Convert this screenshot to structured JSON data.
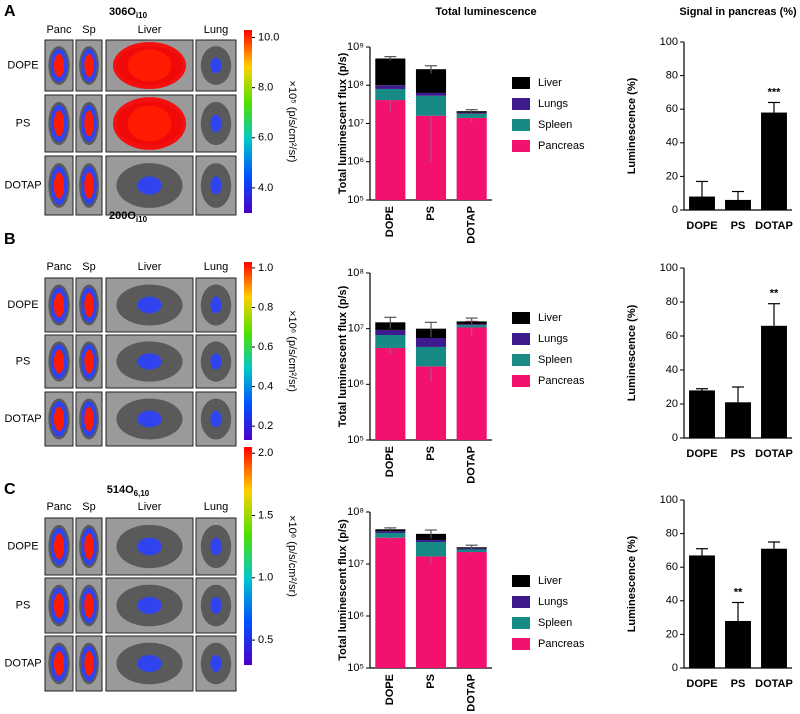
{
  "panels": [
    {
      "letter": "A",
      "title": "306O",
      "title_sub": "i10",
      "columns": [
        "Panc",
        "Sp",
        "Liver",
        "Lung"
      ],
      "rows": [
        "DOPE",
        "PS",
        "DOTAP"
      ],
      "colorbar": {
        "lim": [
          3,
          10.3
        ],
        "ticks": [
          {
            "value": 4,
            "label": "4.0"
          },
          {
            "value": 6,
            "label": "6.0"
          },
          {
            "value": 8,
            "label": "8.0"
          },
          {
            "value": 10,
            "label": "10.0"
          }
        ],
        "label": "×10⁵ (p/s/cm²/sr)"
      }
    },
    {
      "letter": "B",
      "title": "200O",
      "title_sub": "i10",
      "columns": [
        "Panc",
        "Sp",
        "Liver",
        "Lung"
      ],
      "rows": [
        "DOPE",
        "PS",
        "DOTAP"
      ],
      "colorbar": {
        "lim": [
          0.13,
          1.03
        ],
        "ticks": [
          0.2,
          0.4,
          0.6,
          0.8,
          {
            "value": 1,
            "label": "1.0"
          }
        ],
        "label": "×10⁶ (p/s/cm²/sr)"
      }
    },
    {
      "letter": "C",
      "title": "514O",
      "title_sub": "6,10",
      "columns": [
        "Panc",
        "Sp",
        "Liver",
        "Lung"
      ],
      "rows": [
        "DOPE",
        "PS",
        "DOTAP"
      ],
      "colorbar": {
        "lim": [
          0.3,
          2.05
        ],
        "ticks": [
          0.5,
          {
            "value": 1,
            "label": "1.0"
          },
          1.5,
          {
            "value": 2,
            "label": "2.0"
          }
        ],
        "label": "×10⁶ (p/s/cm²/sr)"
      }
    }
  ],
  "chart_data": [
    {
      "type": "stacked_bar",
      "title": "Total luminescence",
      "ylabel": "Total luminescent flux (p/s)",
      "categories": [
        "DOPE",
        "PS",
        "DOTAP"
      ],
      "log_scale": true,
      "ylim": [
        100000,
        1000000000
      ],
      "yticks": [
        {
          "value": 100000,
          "label": "10⁵"
        },
        {
          "value": 1000000,
          "label": "10⁶"
        },
        {
          "value": 10000000,
          "label": "10⁷"
        },
        {
          "value": 100000000,
          "label": "10⁸"
        },
        {
          "value": 1000000000,
          "label": "10⁹"
        }
      ],
      "series": [
        {
          "name": "Pancreas",
          "color": "#f2116c",
          "values": [
            41000000,
            16000000,
            14000000
          ],
          "errors": [
            20000000,
            15000000,
            3000000
          ]
        },
        {
          "name": "Spleen",
          "color": "#168a84",
          "values": [
            39000000,
            37000000,
            4000000
          ]
        },
        {
          "name": "Lungs",
          "color": "#3d1a8e",
          "values": [
            20000000,
            10000000,
            1000000
          ]
        },
        {
          "name": "Liver",
          "color": "#000000",
          "values": [
            400000000,
            200000000,
            2000000
          ],
          "errors": [
            60000000,
            60000000,
            2000000
          ]
        }
      ]
    },
    {
      "type": "bar",
      "title": "Signal in pancreas (%)",
      "ylabel": "Luminescence (%)",
      "categories": [
        "DOPE",
        "PS",
        "DOTAP"
      ],
      "values": [
        8,
        6,
        58
      ],
      "errors": [
        9,
        5,
        6
      ],
      "color": "#000000",
      "ylim": [
        0,
        100
      ],
      "yticks": [
        0,
        20,
        40,
        60,
        80,
        100
      ],
      "annotations": [
        {
          "category": "DOTAP",
          "text": "***"
        }
      ]
    },
    {
      "type": "stacked_bar",
      "ylabel": "Total luminescent flux (p/s)",
      "categories": [
        "DOPE",
        "PS",
        "DOTAP"
      ],
      "log_scale": true,
      "ylim": [
        100000,
        100000000
      ],
      "yticks": [
        {
          "value": 100000,
          "label": "10⁵"
        },
        {
          "value": 1000000,
          "label": "10⁶"
        },
        {
          "value": 10000000,
          "label": "10⁷"
        },
        {
          "value": 100000000,
          "label": "10⁸"
        }
      ],
      "series": [
        {
          "name": "Pancreas",
          "color": "#f2116c",
          "values": [
            4500000,
            2100000,
            10500000
          ],
          "errors": [
            1000000,
            1000000,
            3000000
          ]
        },
        {
          "name": "Spleen",
          "color": "#168a84",
          "values": [
            3200000,
            2600000,
            1000000
          ]
        },
        {
          "name": "Lungs",
          "color": "#3d1a8e",
          "values": [
            1800000,
            2100000,
            500000
          ]
        },
        {
          "name": "Liver",
          "color": "#000000",
          "values": [
            3500000,
            3200000,
            1500000
          ],
          "errors": [
            3000000,
            3000000,
            2000000
          ]
        }
      ]
    },
    {
      "type": "bar",
      "ylabel": "Luminescence (%)",
      "categories": [
        "DOPE",
        "PS",
        "DOTAP"
      ],
      "values": [
        28,
        21,
        66
      ],
      "errors": [
        1,
        9,
        13
      ],
      "color": "#000000",
      "ylim": [
        0,
        100
      ],
      "yticks": [
        0,
        20,
        40,
        60,
        80,
        100
      ],
      "annotations": [
        {
          "category": "DOTAP",
          "text": "**"
        }
      ]
    },
    {
      "type": "stacked_bar",
      "ylabel": "Total luminescent flux (p/s)",
      "categories": [
        "DOPE",
        "PS",
        "DOTAP"
      ],
      "log_scale": true,
      "ylim": [
        100000,
        100000000
      ],
      "yticks": [
        {
          "value": 100000,
          "label": "10⁵"
        },
        {
          "value": 1000000,
          "label": "10⁶"
        },
        {
          "value": 10000000,
          "label": "10⁷"
        },
        {
          "value": 100000000,
          "label": "10⁸"
        }
      ],
      "series": [
        {
          "name": "Pancreas",
          "color": "#f2116c",
          "values": [
            32000000,
            14000000,
            17000000
          ],
          "errors": [
            3000000,
            4000000,
            1000000
          ]
        },
        {
          "name": "Spleen",
          "color": "#168a84",
          "values": [
            7500000,
            12500000,
            2000000
          ]
        },
        {
          "name": "Lungs",
          "color": "#3d1a8e",
          "values": [
            3000000,
            2500000,
            1000000
          ]
        },
        {
          "name": "Liver",
          "color": "#000000",
          "values": [
            4000000,
            9000000,
            1000000
          ],
          "errors": [
            3000000,
            7000000,
            2000000
          ]
        }
      ]
    },
    {
      "type": "bar",
      "ylabel": "Luminescence (%)",
      "categories": [
        "DOPE",
        "PS",
        "DOTAP"
      ],
      "values": [
        67,
        28,
        71
      ],
      "errors": [
        4,
        11,
        4
      ],
      "color": "#000000",
      "ylim": [
        0,
        100
      ],
      "yticks": [
        0,
        20,
        40,
        60,
        80,
        100
      ],
      "annotations": [
        {
          "category": "PS",
          "text": "**"
        }
      ]
    }
  ]
}
